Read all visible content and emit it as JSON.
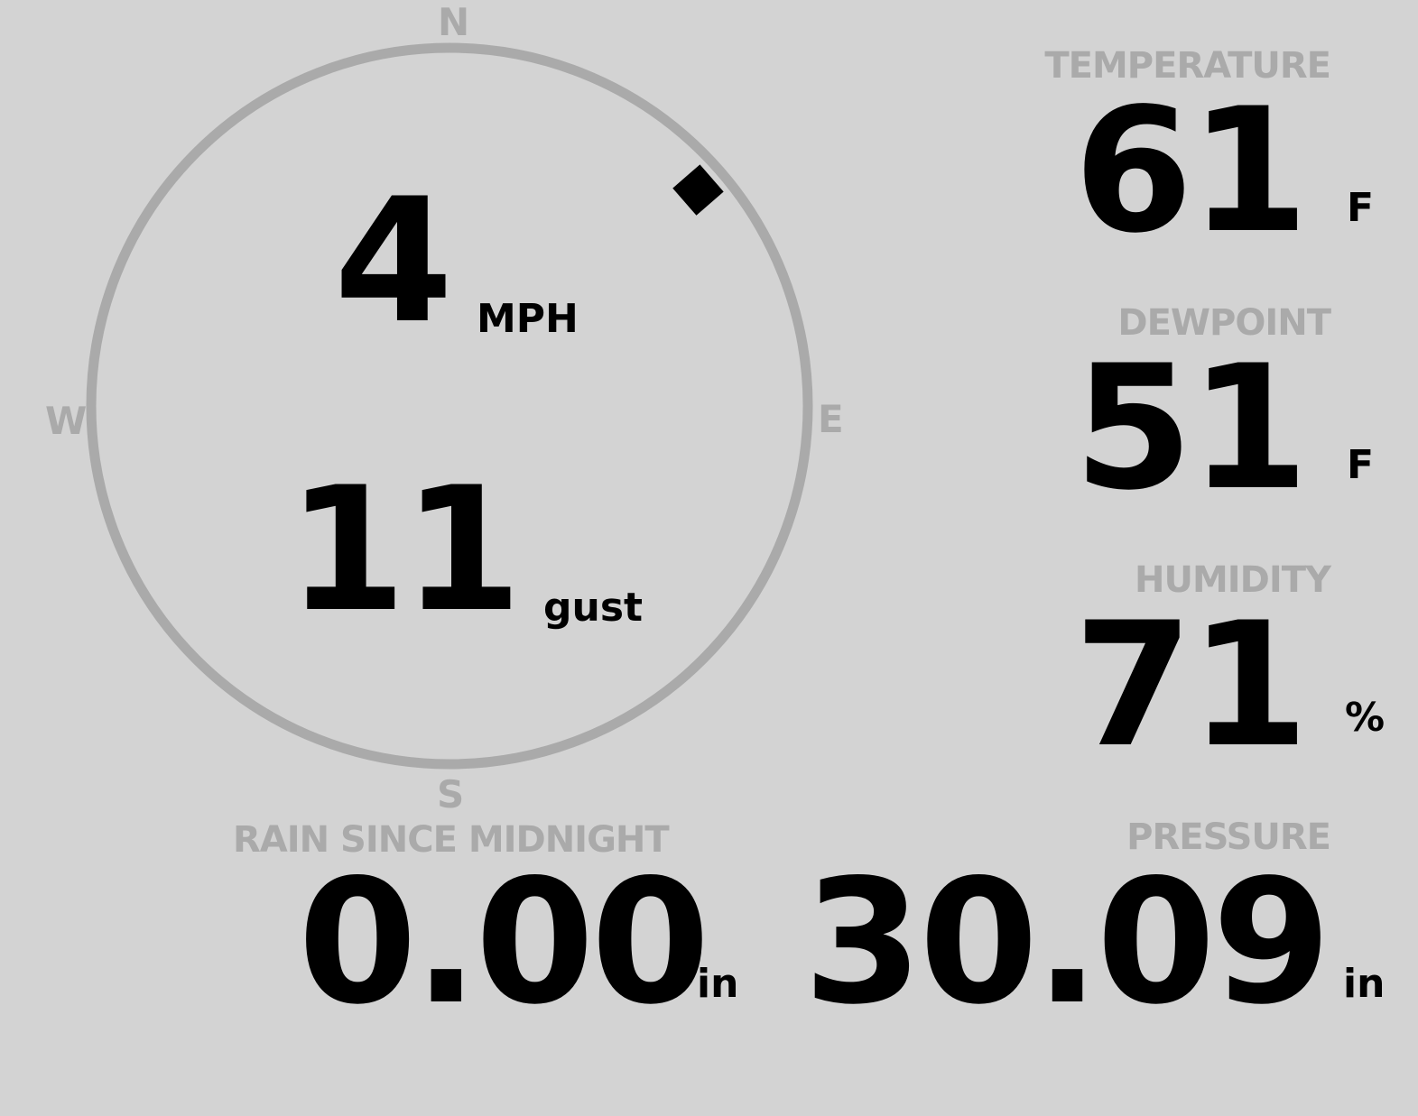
{
  "wind": {
    "speed": "4",
    "speed_unit": "MPH",
    "gust": "11",
    "gust_label": "gust",
    "direction_degrees": 49,
    "compass": {
      "n": "N",
      "e": "E",
      "s": "S",
      "w": "W"
    }
  },
  "temperature": {
    "label": "TEMPERATURE",
    "value": "61",
    "unit": "F"
  },
  "dewpoint": {
    "label": "DEWPOINT",
    "value": "51",
    "unit": "F"
  },
  "humidity": {
    "label": "HUMIDITY",
    "value": "71",
    "unit": "%"
  },
  "rain": {
    "label": "RAIN SINCE MIDNIGHT",
    "value": "0.00",
    "unit": "in"
  },
  "pressure": {
    "label": "PRESSURE",
    "value": "30.09",
    "unit": "in"
  },
  "colors": {
    "background": "#d3d3d3",
    "label": "#aaaaaa",
    "value": "#000000",
    "ring": "#aaaaaa"
  }
}
